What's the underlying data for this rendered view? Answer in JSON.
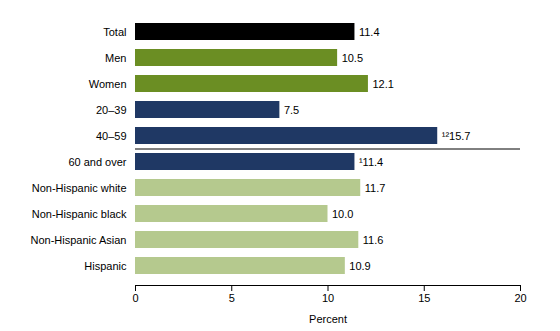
{
  "chart_data": {
    "type": "bar",
    "orientation": "horizontal",
    "categories": [
      "Total",
      "Men",
      "Women",
      "20–39",
      "40–59",
      "60 and over",
      "Non-Hispanic white",
      "Non-Hispanic black",
      "Non-Hispanic Asian",
      "Hispanic"
    ],
    "values": [
      11.4,
      10.5,
      12.1,
      7.5,
      15.7,
      11.4,
      11.7,
      10.0,
      11.6,
      10.9
    ],
    "value_labels": [
      "11.4",
      "10.5",
      "12.1",
      "7.5",
      "¹²15.7",
      "¹11.4",
      "11.7",
      "10.0",
      "11.6",
      "10.9"
    ],
    "colors": [
      "#000000",
      "#6b8e23",
      "#6b8e23",
      "#1f3864",
      "#1f3864",
      "#1f3864",
      "#b5c98e",
      "#b5c98e",
      "#b5c98e",
      "#b5c98e"
    ],
    "xlabel": "Percent",
    "xlim": [
      0,
      20
    ],
    "xticks": [
      0,
      5,
      10,
      15,
      20
    ],
    "data_labels": true
  }
}
